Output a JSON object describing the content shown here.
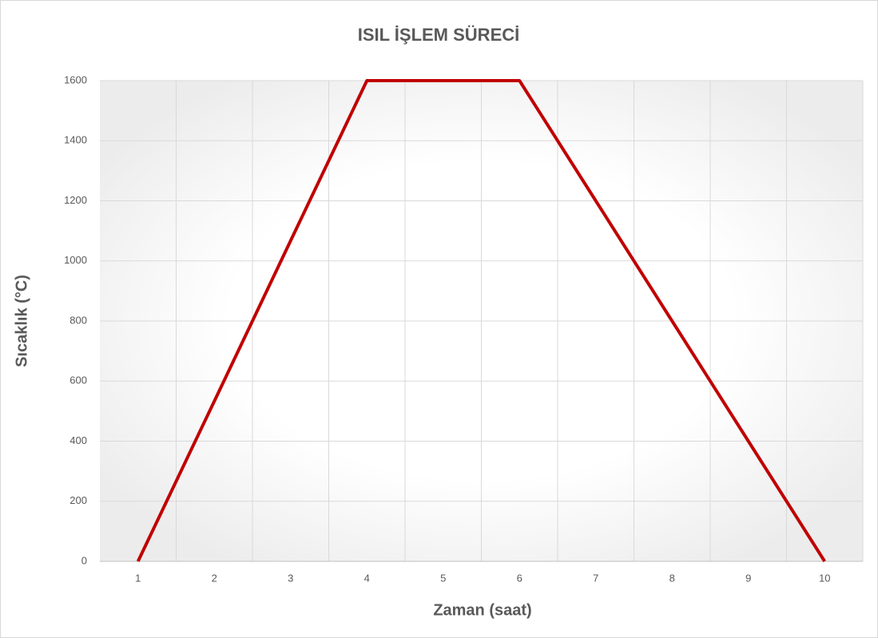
{
  "chart_data": {
    "type": "line",
    "title": "ISIL İŞLEM SÜRECİ",
    "x_label": "Zaman (saat)",
    "y_label": "Sıcaklık (°C)",
    "categories": [
      "1",
      "2",
      "3",
      "4",
      "5",
      "6",
      "7",
      "8",
      "9",
      "10"
    ],
    "values": [
      0,
      533,
      1067,
      1600,
      1600,
      1600,
      1200,
      800,
      400,
      0
    ],
    "color": "#c00000",
    "ylim": [
      0,
      1600
    ],
    "yticks": [
      0,
      200,
      400,
      600,
      800,
      1000,
      1200,
      1400,
      1600
    ],
    "grid": true
  }
}
